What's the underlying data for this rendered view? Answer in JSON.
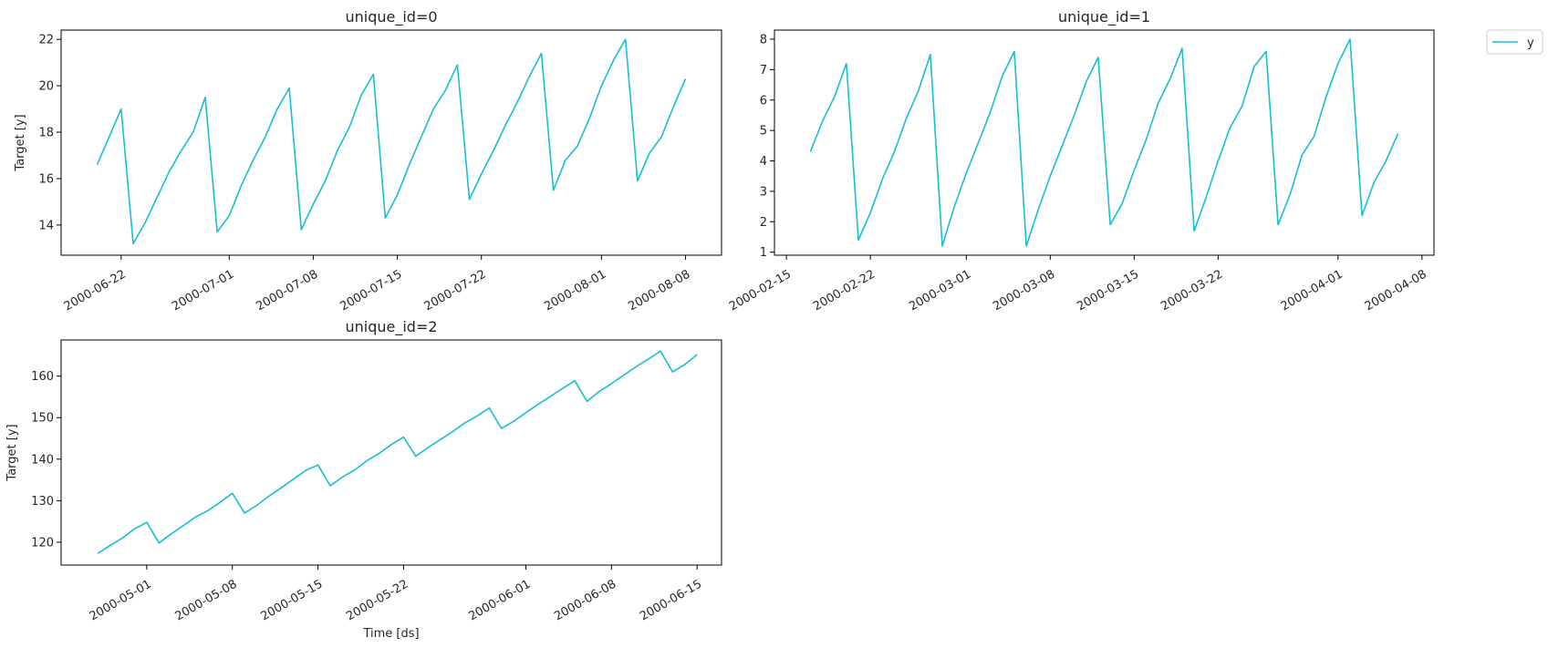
{
  "chart_data": [
    {
      "type": "line",
      "title": "unique_id=0",
      "xlabel": "",
      "ylabel": "Target [y]",
      "x_start": "2000-06-20",
      "x_step_days": 1,
      "xlim": [
        "2000-06-17",
        "2000-08-11"
      ],
      "ylim": [
        12.7,
        22.4
      ],
      "yticks": [
        14,
        16,
        18,
        20,
        22
      ],
      "xticks": [
        "2000-06-22",
        "2000-07-01",
        "2000-07-08",
        "2000-07-15",
        "2000-07-22",
        "2000-08-01",
        "2000-08-08"
      ],
      "series": [
        {
          "name": "y",
          "color": "#17becf",
          "values": [
            16.6,
            17.8,
            19.0,
            13.2,
            14.1,
            15.2,
            16.3,
            17.2,
            18.0,
            19.5,
            13.7,
            14.4,
            15.7,
            16.8,
            17.8,
            19.0,
            19.9,
            13.8,
            14.9,
            15.9,
            17.2,
            18.2,
            19.6,
            20.5,
            14.3,
            15.3,
            16.6,
            17.8,
            19.0,
            19.8,
            20.9,
            15.1,
            16.2,
            17.2,
            18.3,
            19.3,
            20.4,
            21.4,
            15.5,
            16.8,
            17.4,
            18.6,
            20.0,
            21.1,
            22.0,
            15.9,
            17.1,
            17.8,
            19.1,
            20.3
          ]
        }
      ],
      "grid": false
    },
    {
      "type": "line",
      "title": "unique_id=1",
      "xlabel": "",
      "ylabel": "",
      "x_start": "2000-02-17",
      "x_step_days": 1,
      "xlim": [
        "2000-02-14",
        "2000-04-09"
      ],
      "ylim": [
        0.9,
        8.3
      ],
      "yticks": [
        1,
        2,
        3,
        4,
        5,
        6,
        7,
        8
      ],
      "xticks": [
        "2000-02-15",
        "2000-02-22",
        "2000-03-01",
        "2000-03-08",
        "2000-03-15",
        "2000-03-22",
        "2000-04-01",
        "2000-04-08"
      ],
      "series": [
        {
          "name": "y",
          "color": "#17becf",
          "values": [
            4.3,
            5.3,
            6.1,
            7.2,
            1.4,
            2.3,
            3.4,
            4.3,
            5.4,
            6.3,
            7.5,
            1.2,
            2.5,
            3.6,
            4.6,
            5.6,
            6.8,
            7.6,
            1.2,
            2.4,
            3.5,
            4.5,
            5.5,
            6.6,
            7.4,
            1.9,
            2.6,
            3.7,
            4.7,
            5.9,
            6.7,
            7.7,
            1.7,
            2.8,
            4.0,
            5.1,
            5.8,
            7.1,
            7.6,
            1.9,
            2.9,
            4.2,
            4.8,
            6.1,
            7.2,
            8.0,
            2.2,
            3.3,
            4.0,
            4.9
          ]
        }
      ],
      "grid": false
    },
    {
      "type": "line",
      "title": "unique_id=2",
      "xlabel": "Time [ds]",
      "ylabel": "Target [y]",
      "x_start": "2000-04-27",
      "x_step_days": 1,
      "xlim": [
        "2000-04-24",
        "2000-06-17"
      ],
      "ylim": [
        114.5,
        168.7
      ],
      "yticks": [
        120,
        130,
        140,
        150,
        160
      ],
      "xticks": [
        "2000-05-01",
        "2000-05-08",
        "2000-05-15",
        "2000-05-22",
        "2000-06-01",
        "2000-06-08",
        "2000-06-15"
      ],
      "series": [
        {
          "name": "y",
          "color": "#17becf",
          "values": [
            117.3,
            119.2,
            121.0,
            123.2,
            124.8,
            119.8,
            122.0,
            124.0,
            126.1,
            127.6,
            129.6,
            131.8,
            127.0,
            128.9,
            131.1,
            133.1,
            135.2,
            137.3,
            138.6,
            133.6,
            135.7,
            137.4,
            139.6,
            141.4,
            143.5,
            145.3,
            140.7,
            142.8,
            144.7,
            146.6,
            148.7,
            150.4,
            152.3,
            147.4,
            149.1,
            151.2,
            153.2,
            155.1,
            157.0,
            158.9,
            153.9,
            156.3,
            158.2,
            160.2,
            162.2,
            164.1,
            166.0,
            161.0,
            162.8,
            165.2
          ]
        }
      ],
      "grid": false
    }
  ],
  "legend": {
    "placement": "upper-right-outside",
    "entries": [
      {
        "label": "y",
        "color": "#17becf"
      }
    ]
  }
}
